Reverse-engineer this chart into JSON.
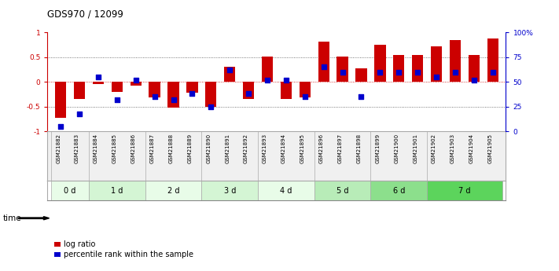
{
  "title": "GDS970 / 12099",
  "samples": [
    "GSM21882",
    "GSM21883",
    "GSM21884",
    "GSM21885",
    "GSM21886",
    "GSM21887",
    "GSM21888",
    "GSM21889",
    "GSM21890",
    "GSM21891",
    "GSM21892",
    "GSM21893",
    "GSM21894",
    "GSM21895",
    "GSM21896",
    "GSM21897",
    "GSM21898",
    "GSM21899",
    "GSM21900",
    "GSM21901",
    "GSM21902",
    "GSM21903",
    "GSM21904",
    "GSM21905"
  ],
  "log_ratio": [
    -0.72,
    -0.35,
    -0.05,
    -0.2,
    -0.08,
    -0.32,
    -0.52,
    -0.22,
    -0.5,
    0.3,
    -0.35,
    0.52,
    -0.35,
    -0.32,
    0.82,
    0.52,
    0.28,
    0.75,
    0.55,
    0.55,
    0.72,
    0.85,
    0.55,
    0.88
  ],
  "percentile_rank": [
    5,
    18,
    55,
    32,
    52,
    35,
    32,
    38,
    25,
    62,
    38,
    52,
    52,
    35,
    65,
    60,
    35,
    60,
    60,
    60,
    55,
    60,
    52,
    60
  ],
  "time_groups": [
    {
      "label": "0 d",
      "start": 0,
      "end": 2,
      "color": "#e8fce8"
    },
    {
      "label": "1 d",
      "start": 2,
      "end": 5,
      "color": "#d4f5d4"
    },
    {
      "label": "2 d",
      "start": 5,
      "end": 8,
      "color": "#e8fce8"
    },
    {
      "label": "3 d",
      "start": 8,
      "end": 11,
      "color": "#d4f5d4"
    },
    {
      "label": "4 d",
      "start": 11,
      "end": 14,
      "color": "#e8fce8"
    },
    {
      "label": "5 d",
      "start": 14,
      "end": 17,
      "color": "#b8ecb8"
    },
    {
      "label": "6 d",
      "start": 17,
      "end": 20,
      "color": "#8cdf8c"
    },
    {
      "label": "7 d",
      "start": 20,
      "end": 24,
      "color": "#5cd45c"
    }
  ],
  "bar_color": "#cc0000",
  "dot_color": "#0000cc",
  "ylim_left": [
    -1,
    1
  ],
  "yticks_left": [
    -1,
    -0.5,
    0,
    0.5,
    1
  ],
  "ytick_labels_left": [
    "-1",
    "-0.5",
    "0",
    "0.5",
    "1"
  ],
  "yticks_right": [
    0,
    25,
    50,
    75,
    100
  ],
  "ytick_labels_right": [
    "0",
    "25",
    "50",
    "75",
    "100%"
  ],
  "dotted_lines": [
    -0.5,
    0.5
  ],
  "legend_log_ratio": "log ratio",
  "legend_percentile": "percentile rank within the sample",
  "time_label": "time",
  "bg_color": "#ffffff"
}
